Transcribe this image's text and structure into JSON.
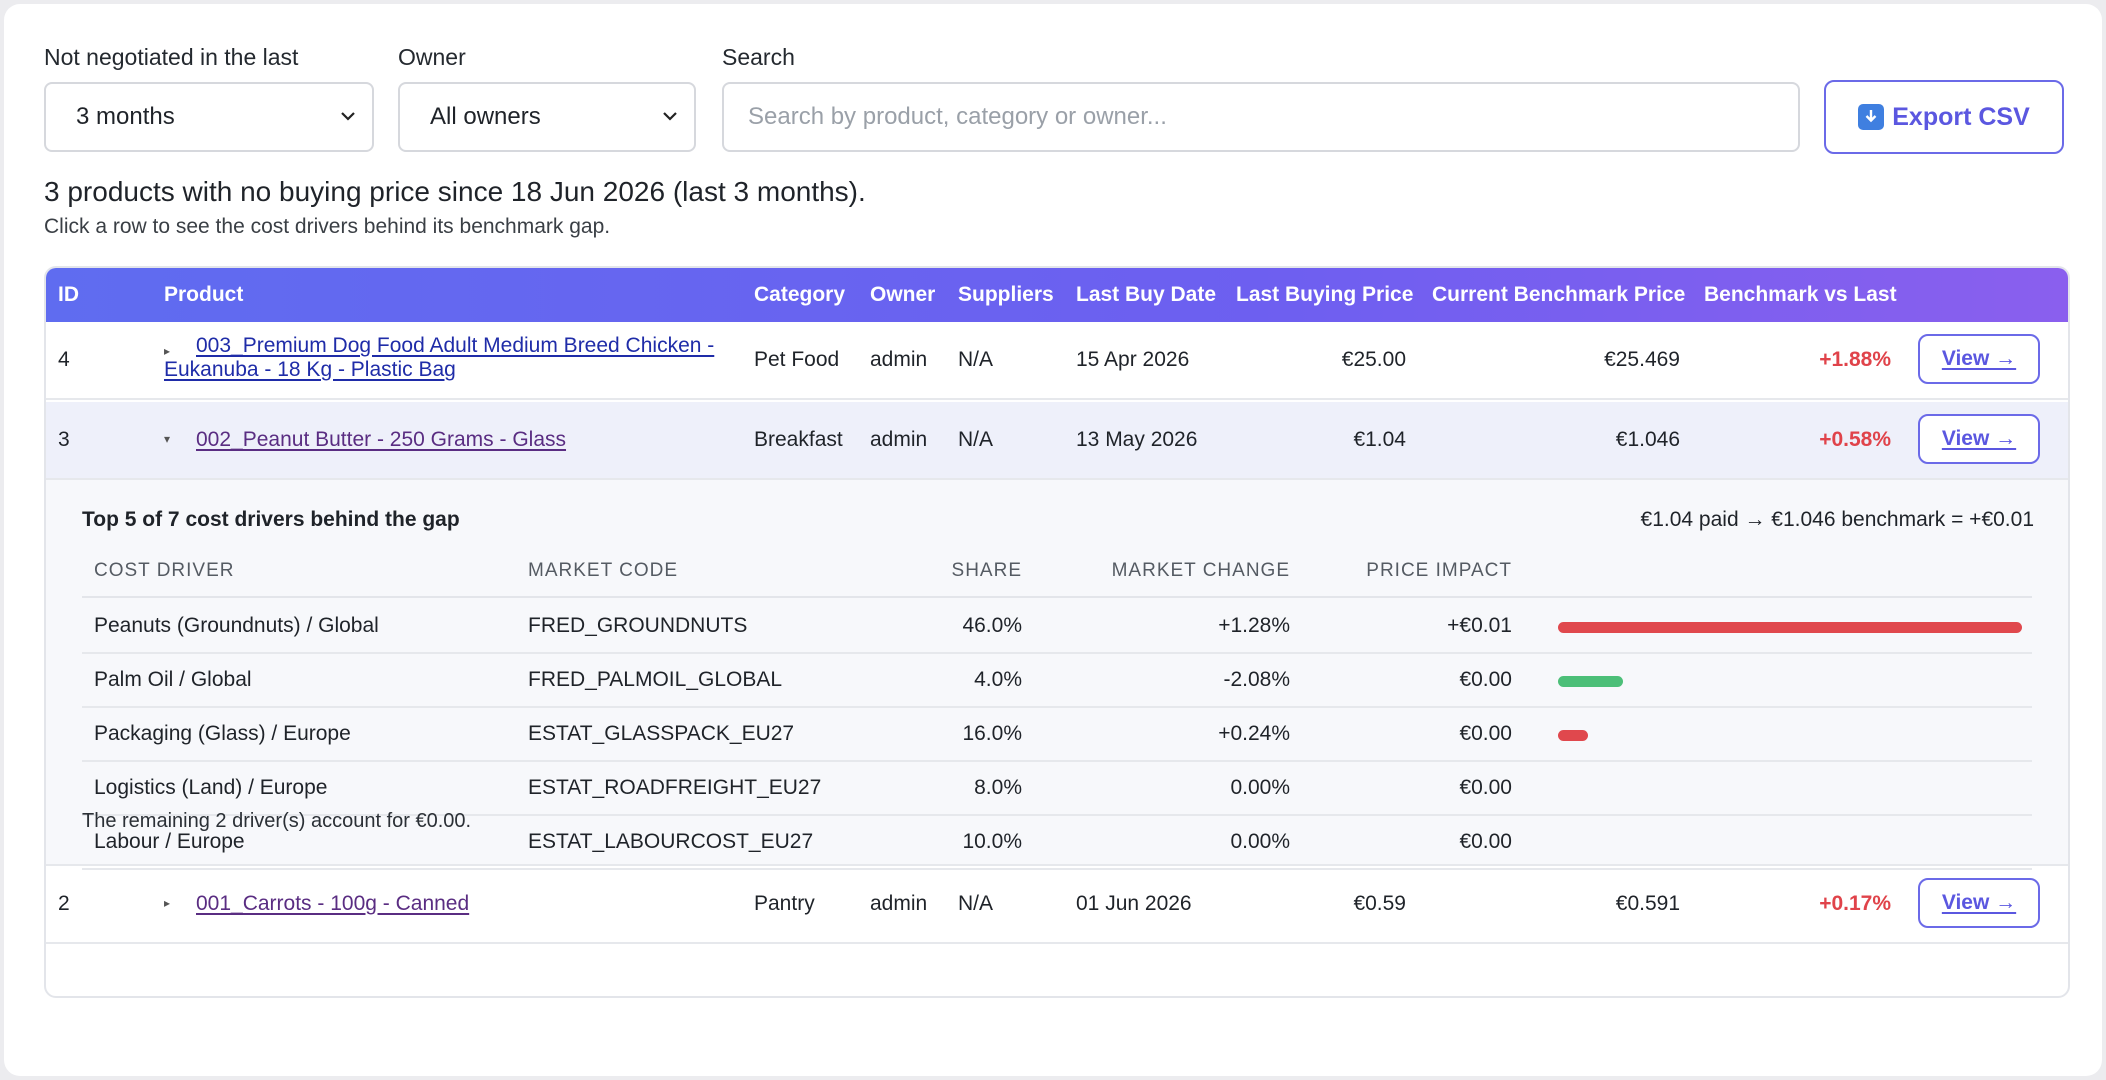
{
  "filters": {
    "period_label": "Not negotiated in the last",
    "period_value": "3 months",
    "owner_label": "Owner",
    "owner_value": "All owners",
    "search_label": "Search",
    "search_placeholder": "Search by product, category or owner...",
    "search_value": "",
    "export_label": "Export CSV"
  },
  "summary": "3 products with no buying price since 18 Jun 2026 (last 3 months).",
  "hint": "Click a row to see the cost drivers behind its benchmark gap.",
  "table": {
    "headers": [
      "ID",
      "Product",
      "Category",
      "Owner",
      "Suppliers",
      "Last Buy Date",
      "Last Buying Price",
      "Current Benchmark Price",
      "Benchmark vs Last"
    ],
    "view_label": "View →",
    "rows": [
      {
        "id": "4",
        "product_line1": "003_Premium Dog Food Adult Medium Breed Chicken -",
        "product_line2": "Eukanuba - 18 Kg - Plastic Bag",
        "category": "Pet Food",
        "owner": "admin",
        "suppliers": "N/A",
        "last_buy_date": "15 Apr 2026",
        "last_price": "€25.00",
        "benchmark": "€25.469",
        "delta": "+1.88%"
      },
      {
        "id": "3",
        "product": "002_Peanut Butter - 250 Grams - Glass",
        "category": "Breakfast",
        "owner": "admin",
        "suppliers": "N/A",
        "last_buy_date": "13 May 2026",
        "last_price": "€1.04",
        "benchmark": "€1.046",
        "delta": "+0.58%"
      },
      {
        "id": "2",
        "product": "001_Carrots - 100g - Canned",
        "category": "Pantry",
        "owner": "admin",
        "suppliers": "N/A",
        "last_buy_date": "01 Jun 2026",
        "last_price": "€0.59",
        "benchmark": "€0.591",
        "delta": "+0.17%"
      }
    ]
  },
  "detail": {
    "title": "Top 5 of 7 cost drivers behind the gap",
    "summary": "€1.04 paid → €1.046 benchmark = +€0.01",
    "headers": [
      "COST DRIVER",
      "MARKET CODE",
      "SHARE",
      "MARKET CHANGE",
      "PRICE IMPACT"
    ],
    "drivers": [
      {
        "name": "Peanuts (Groundnuts) / Global",
        "code": "FRED_GROUNDNUTS",
        "share": "46.0%",
        "change": "+1.28%",
        "impact": "+€0.01",
        "bar_fraction": 1.0,
        "bar_color": "#e0484d"
      },
      {
        "name": "Palm Oil / Global",
        "code": "FRED_PALMOIL_GLOBAL",
        "share": "4.0%",
        "change": "-2.08%",
        "impact": "€0.00",
        "bar_fraction": 0.14,
        "bar_color": "#4cbf78"
      },
      {
        "name": "Packaging (Glass) / Europe",
        "code": "ESTAT_GLASSPACK_EU27",
        "share": "16.0%",
        "change": "+0.24%",
        "impact": "€0.00",
        "bar_fraction": 0.065,
        "bar_color": "#e0484d"
      },
      {
        "name": "Logistics (Land) / Europe",
        "code": "ESTAT_ROADFREIGHT_EU27",
        "share": "8.0%",
        "change": "0.00%",
        "impact": "€0.00",
        "bar_fraction": 0,
        "bar_color": "#e0484d"
      },
      {
        "name": "Labour / Europe",
        "code": "ESTAT_LABOURCOST_EU27",
        "share": "10.0%",
        "change": "0.00%",
        "impact": "€0.00",
        "bar_fraction": 0,
        "bar_color": "#e0484d"
      }
    ],
    "remaining": "The remaining 2 driver(s) account for €0.00."
  }
}
